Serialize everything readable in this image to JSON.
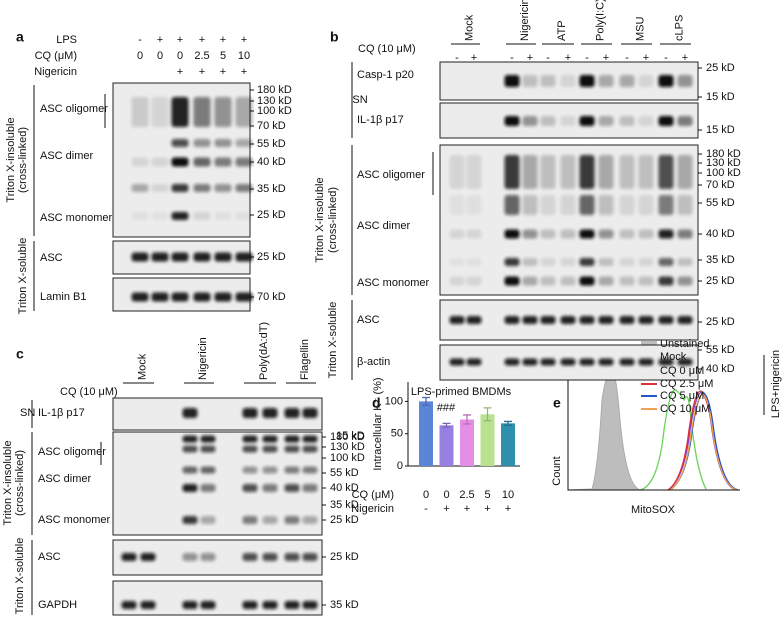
{
  "panel_a": {
    "label": "a",
    "lps_label": "LPS",
    "lps": [
      "-",
      "+",
      "+",
      "+",
      "+",
      "+"
    ],
    "cq_label": "CQ (μM)",
    "cq": [
      "0",
      "0",
      "0",
      "2.5",
      "5",
      "10"
    ],
    "nigericin_label": "Nigericin",
    "nigericin": [
      "+",
      "+",
      "+",
      "+"
    ],
    "bands": [
      "ASC oligomer",
      "ASC dimer",
      "ASC monomer",
      "ASC",
      "Lamin B1"
    ],
    "fractions": [
      "Triton X-insoluble",
      "(cross-linked)",
      "Triton X-soluble"
    ],
    "markers": [
      "180 kD",
      "130 kD",
      "100 kD",
      "70 kD",
      "55 kD",
      "40 kD",
      "35 kD",
      "25 kD",
      "25 kD",
      "70 kD"
    ]
  },
  "panel_b": {
    "label": "b",
    "treatments": [
      "Mock",
      "Nigericin",
      "ATP",
      "Poly(I:C)",
      "MSU",
      "cLPS"
    ],
    "cq_label": "CQ (10 μM)",
    "cq": [
      "-",
      "+",
      "-",
      "+",
      "-",
      "+",
      "-",
      "+",
      "-",
      "+",
      "-",
      "+"
    ],
    "sn_label": "SN",
    "bands": [
      "Casp-1 p20",
      "IL-1β p17",
      "ASC oligomer",
      "ASC dimer",
      "ASC monomer",
      "ASC",
      "β-actin"
    ],
    "fractions": [
      "Triton X-insoluble",
      "(cross-linked)",
      "Triton X-soluble"
    ],
    "markers": [
      "25 kD",
      "15 kD",
      "15 kD",
      "180 kD",
      "130 kD",
      "100 kD",
      "70 kD",
      "55 kD",
      "40 kD",
      "35 kD",
      "25 kD",
      "25 kD",
      "55 kD",
      "40 kD"
    ]
  },
  "panel_c": {
    "label": "c",
    "treatments": [
      "Mock",
      "Nigericin",
      "Poly(dA:dT)",
      "Flagellin"
    ],
    "cq_label": "CQ (10 μM)",
    "cq": [
      "-",
      "+",
      "-",
      "+",
      "-",
      "+",
      "-",
      "+"
    ],
    "sn_label": "SN",
    "bands": [
      "IL-1β p17",
      "ASC oligomer",
      "ASC dimer",
      "ASC monomer",
      "ASC",
      "GAPDH"
    ],
    "fractions": [
      "Triton X-insoluble",
      "(cross-linked)",
      "Triton X-soluble"
    ],
    "markers": [
      "15 kD",
      "180 kD",
      "130 kD",
      "100 kD",
      "55 kD",
      "40 kD",
      "35 kD",
      "25 kD",
      "25 kD",
      "35 kD"
    ]
  },
  "chart_data": {
    "type": "bar",
    "label": "d",
    "title": "LPS-primed BMDMs",
    "y_label": "Intracellular K⁺ (%)",
    "categories_label": "CQ (μM)",
    "categories": [
      "0",
      "0",
      "2.5",
      "5",
      "10"
    ],
    "nigericin_label": "Nigericin",
    "nigericin": [
      "-",
      "+",
      "+",
      "+",
      "+"
    ],
    "values": [
      100,
      63,
      72,
      80,
      66
    ],
    "errors": [
      6,
      3,
      7,
      10,
      3
    ],
    "colors": [
      "#5b86d8",
      "#9a7fe3",
      "#e48ee8",
      "#b8e28f",
      "#2f8fae"
    ],
    "annotation": "###",
    "ylim": [
      0,
      130
    ],
    "yticks": [
      0,
      50,
      100
    ]
  },
  "panel_e": {
    "label": "e",
    "legend": [
      "Unstained",
      "Mock",
      "CQ 0 μM",
      "CQ 2.5 μM",
      "CQ 5 μM",
      "CQ 10 μM"
    ],
    "group": "LPS+nigericin",
    "y_label": "Count",
    "x_label": "MitoSOX"
  }
}
